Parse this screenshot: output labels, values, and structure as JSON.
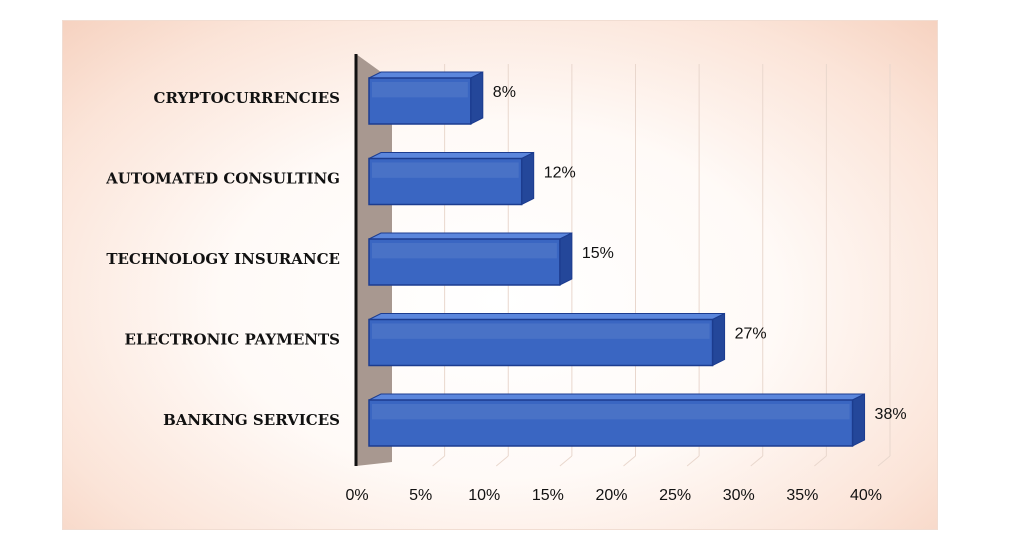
{
  "chart_data": {
    "type": "bar",
    "orientation": "horizontal",
    "style": "3d",
    "categories": [
      "CRYPTOCURRENCIES",
      "AUTOMATED CONSULTING",
      "TECHNOLOGY INSURANCE",
      "ELECTRONIC PAYMENTS",
      "BANKING SERVICES"
    ],
    "values": [
      8,
      12,
      15,
      27,
      38
    ],
    "value_labels": [
      "8%",
      "12%",
      "15%",
      "27%",
      "38%"
    ],
    "xlim": [
      0,
      40
    ],
    "xticks": [
      "0%",
      "5%",
      "10%",
      "15%",
      "20%",
      "25%",
      "30%",
      "35%",
      "40%"
    ],
    "title": "",
    "xlabel": "",
    "ylabel": "",
    "grid": "vertical",
    "legend": "none",
    "colors": {
      "bar_front": "#3a66c2",
      "bar_top": "#5b86dc",
      "bar_side": "#24479a",
      "bar_edge": "#1c3c8f",
      "axis_wall": "#a89890",
      "axis_line": "#111111",
      "gridline": "#e9d7cd"
    }
  }
}
